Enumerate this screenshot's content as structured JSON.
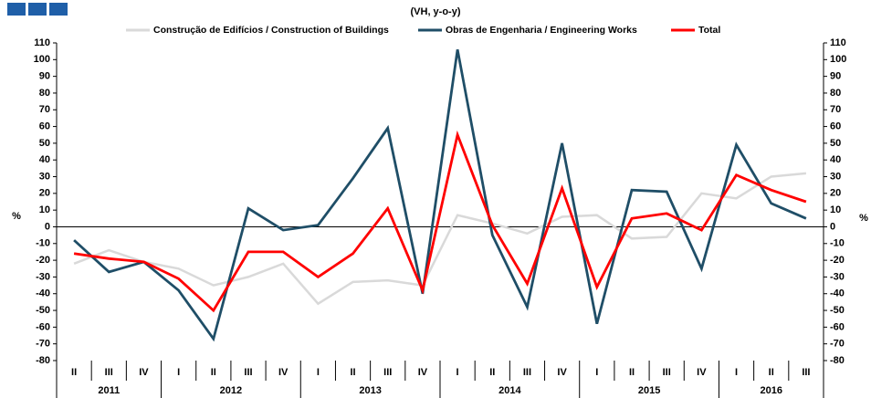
{
  "chart_data": {
    "type": "line",
    "subtitle": "(VH, y-o-y)",
    "ylabel": "%",
    "y2label": "%",
    "categories": [
      "II",
      "III",
      "IV",
      "I",
      "II",
      "III",
      "IV",
      "I",
      "II",
      "III",
      "IV",
      "I",
      "II",
      "III",
      "IV",
      "I",
      "II",
      "III",
      "IV",
      "I",
      "II",
      "III"
    ],
    "year_groups": [
      {
        "label": "2011",
        "span": 3
      },
      {
        "label": "2012",
        "span": 4
      },
      {
        "label": "2013",
        "span": 4
      },
      {
        "label": "2014",
        "span": 4
      },
      {
        "label": "2015",
        "span": 4
      },
      {
        "label": "2016",
        "span": 3
      }
    ],
    "series": [
      {
        "name": "Construção de Edifícios / Construction of Buildings",
        "color": "#d9d9d9",
        "values": [
          -22,
          -14,
          -21,
          -25,
          -35,
          -30,
          -22,
          -46,
          -33,
          -32,
          -35,
          7,
          2,
          -4,
          6,
          7,
          -7,
          -6,
          20,
          17,
          30,
          32
        ]
      },
      {
        "name": "Obras de Engenharia / Engineering Works",
        "color": "#1f4e67",
        "values": [
          -8,
          -27,
          -21,
          -38,
          -67,
          11,
          -2,
          1,
          29,
          59,
          -40,
          106,
          -5,
          -48,
          50,
          -58,
          22,
          21,
          -25,
          49,
          14,
          5
        ]
      },
      {
        "name": "Total",
        "color": "#ff0000",
        "values": [
          -16,
          -19,
          -21,
          -31,
          -50,
          -15,
          -15,
          -30,
          -16,
          11,
          -38,
          55,
          1,
          -34,
          23,
          -36,
          5,
          8,
          -2,
          31,
          22,
          15
        ]
      }
    ],
    "ylim": [
      -80,
      110
    ],
    "yticks": [
      -80,
      -70,
      -60,
      -50,
      -40,
      -30,
      -20,
      -10,
      0,
      10,
      20,
      30,
      40,
      50,
      60,
      70,
      80,
      90,
      100,
      110
    ]
  }
}
